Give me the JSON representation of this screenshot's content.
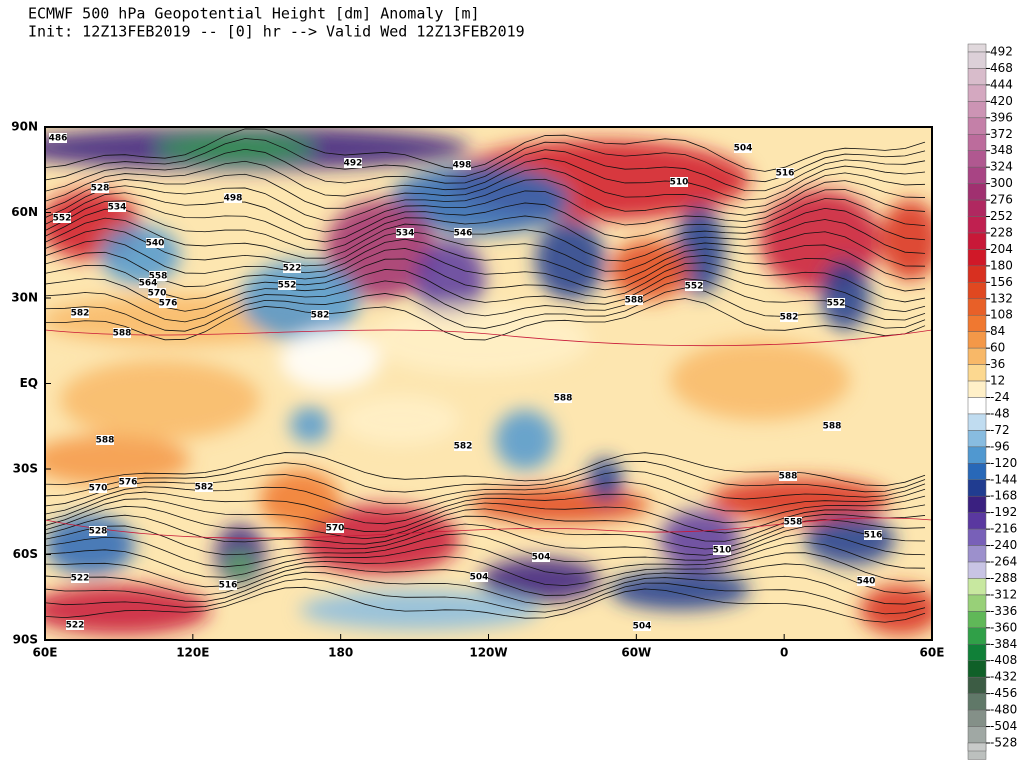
{
  "title": "ECMWF 500 hPa Geopotential Height [dm] Anomaly [m]",
  "subtitle": "Init: 12Z13FEB2019 -- [0] hr --> Valid Wed 12Z13FEB2019",
  "lat_labels": [
    "90N",
    "60N",
    "30N",
    "EQ",
    "30S",
    "60S",
    "90S"
  ],
  "lon_labels": [
    "60E",
    "120E",
    "180",
    "120W",
    "60W",
    "0",
    "60E"
  ],
  "colorbar": {
    "ticks": [
      492,
      468,
      444,
      420,
      396,
      372,
      348,
      324,
      300,
      276,
      252,
      228,
      204,
      180,
      156,
      132,
      108,
      84,
      60,
      36,
      12,
      -24,
      -48,
      -72,
      -96,
      -120,
      -144,
      -168,
      -192,
      -216,
      -240,
      -264,
      -288,
      -312,
      -336,
      -360,
      -384,
      -408,
      -432,
      -456,
      -480,
      -504,
      -528
    ],
    "colors": [
      "#dcd0d8",
      "#d8bccb",
      "#d4a8c0",
      "#cc94b4",
      "#c480a8",
      "#bc6c9c",
      "#b05890",
      "#a84484",
      "#a03070",
      "#b02860",
      "#c02050",
      "#c81838",
      "#d01828",
      "#d83020",
      "#e04820",
      "#e86028",
      "#f07830",
      "#f49848",
      "#f8b868",
      "#fcd890",
      "#fff0c8",
      "#ffffff",
      "#c0dcf0",
      "#88bce0",
      "#5098d0",
      "#2868b8",
      "#203c90",
      "#3a2080",
      "#5a38a0",
      "#7860b8",
      "#9c90cc",
      "#c8c4e4",
      "#c8e8a0",
      "#98d078",
      "#60b858",
      "#30a048",
      "#108038",
      "#106028",
      "#3c5c44",
      "#607868",
      "#849088",
      "#a0a8a4",
      "#bcc0be"
    ]
  },
  "contour_labels": [
    "486",
    "552",
    "534",
    "528",
    "540",
    "558",
    "564",
    "570",
    "576",
    "582",
    "588",
    "498",
    "522",
    "552",
    "546",
    "534",
    "582",
    "492",
    "498",
    "504",
    "510",
    "516",
    "552",
    "588",
    "552",
    "582",
    "588",
    "582",
    "570",
    "576",
    "528",
    "522",
    "516",
    "504",
    "504",
    "522",
    "588",
    "582",
    "558",
    "516",
    "510",
    "504",
    "540",
    "588",
    "588",
    "570"
  ]
}
